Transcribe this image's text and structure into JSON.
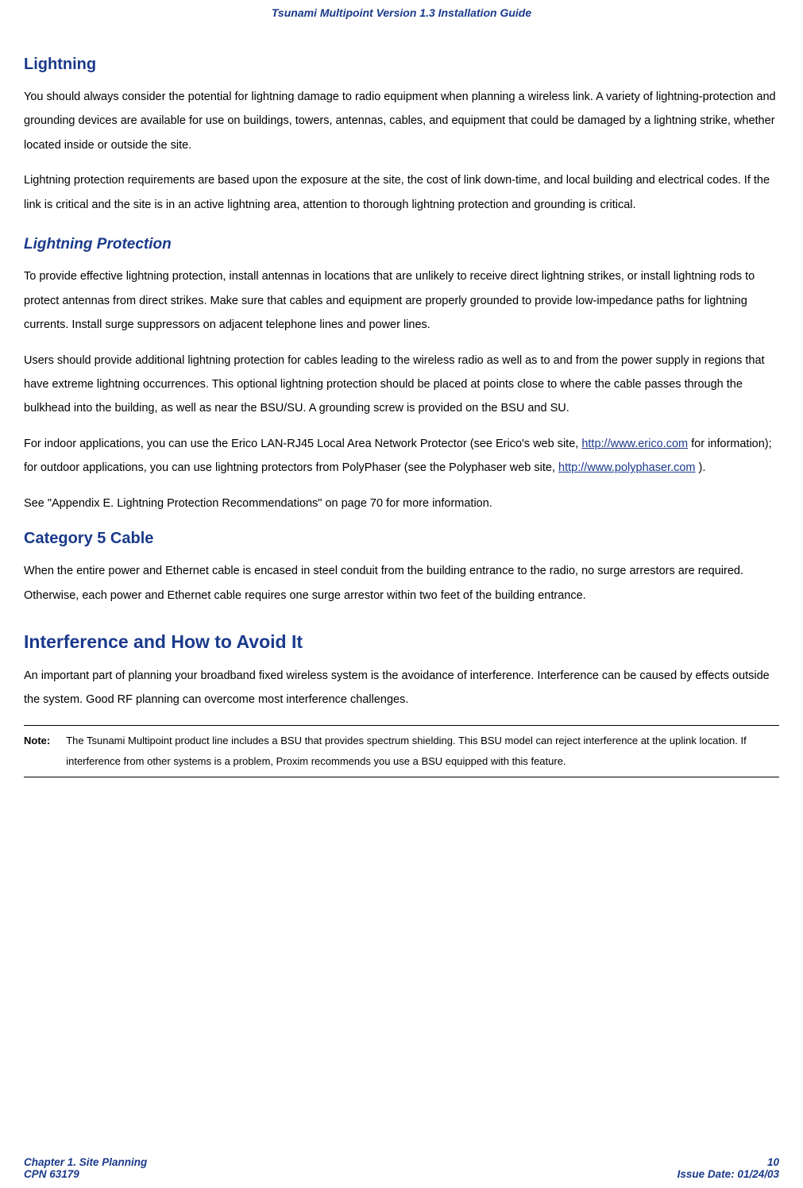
{
  "header": {
    "title": "Tsunami Multipoint Version 1.3 Installation Guide",
    "color": "#1a3a8a"
  },
  "sections": {
    "lightning": {
      "heading": "Lightning",
      "p1": "You should always consider the potential for lightning damage to radio equipment when planning a wireless link.  A variety of lightning-protection and grounding devices are available for use on buildings, towers, antennas, cables, and equipment that could be damaged by a lightning strike, whether located inside or outside the site.",
      "p2": "Lightning protection requirements are based upon the exposure at the site, the cost of link down-time, and local building and electrical codes.  If the link is critical and the site is in an active lightning area, attention to thorough lightning protection and grounding is critical."
    },
    "lightning_protection": {
      "heading": "Lightning Protection",
      "p1": "To provide effective lightning protection, install antennas in locations that are unlikely to receive direct lightning strikes, or install lightning rods to protect antennas from direct strikes.  Make sure that cables and equipment are properly grounded to provide low-impedance paths for lightning currents.  Install surge suppressors on adjacent telephone lines and power lines.",
      "p2": "Users should provide additional lightning protection for cables leading to the wireless radio as well as to and from the power supply in regions that have extreme lightning occurrences.  This optional lightning protection should be placed at points close to where the cable passes through the bulkhead into the building, as well as near the BSU/SU.  A grounding screw is provided on the BSU and SU.",
      "p3_pre": "For indoor applications, you can use the Erico LAN-RJ45 Local Area Network Protector (see Erico's web site, ",
      "p3_link1_text": "http://www.erico.com",
      "p3_link1_url": "http://www.erico.com",
      "p3_mid": " for information); for outdoor applications, you can use lightning protectors from PolyPhaser (see the Polyphaser web site, ",
      "p3_link2_text": "http://www.polyphaser.com",
      "p3_link2_url": "http://www.polyphaser.com",
      "p3_post": " ).",
      "p4": "See \"Appendix  E.  Lightning Protection Recommendations\" on page 70 for more information."
    },
    "cat5": {
      "heading": "Category 5 Cable",
      "p1": "When the entire power and Ethernet cable is encased in steel conduit from the building entrance to the radio, no surge arrestors are required. Otherwise, each power and Ethernet cable requires one surge arrestor within two feet of the building entrance."
    },
    "interference": {
      "heading": "Interference and How to Avoid It",
      "p1": "An important part of planning your broadband fixed wireless system is the avoidance of interference.  Interference can be caused by effects outside the system.  Good RF planning can overcome most interference challenges."
    },
    "note": {
      "label": "Note:",
      "text": "The Tsunami Multipoint product line includes a BSU that provides spectrum shielding.  This BSU model can reject interference at the uplink location.  If interference from other systems is a problem, Proxim recommends you use a BSU equipped with this feature."
    }
  },
  "footer": {
    "chapter": "Chapter 1.  Site Planning",
    "cpn": "CPN 63179",
    "page_number": "10",
    "issue_date": "Issue Date:  01/24/03",
    "color": "#1a3a8a"
  }
}
